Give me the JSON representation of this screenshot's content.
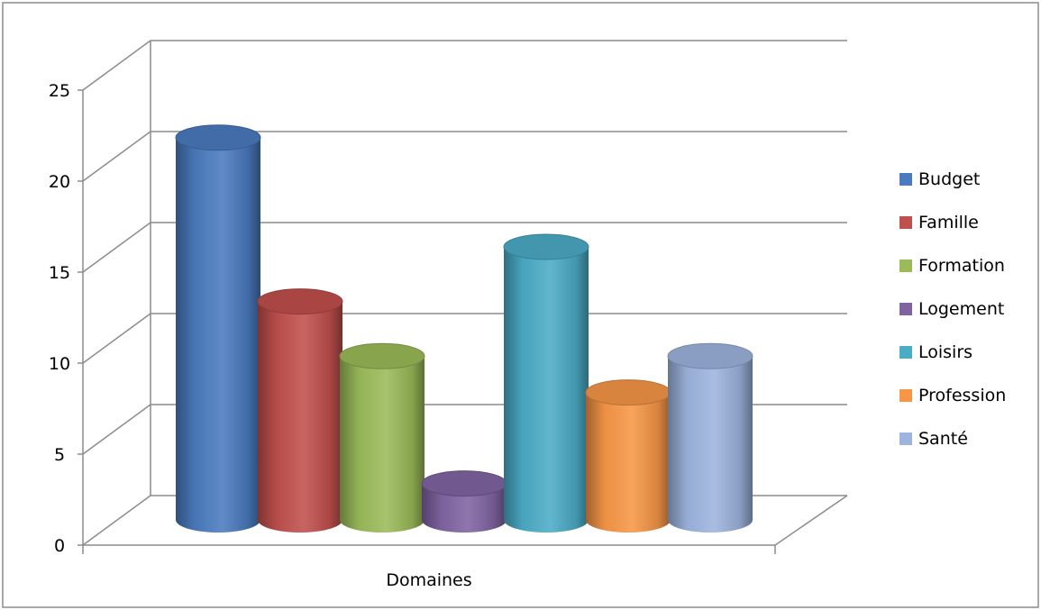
{
  "chart_data": {
    "type": "bar",
    "title": "",
    "xlabel": "Domaines",
    "ylabel": "",
    "ylim": [
      0,
      25
    ],
    "yticks": [
      0,
      5,
      10,
      15,
      20,
      25
    ],
    "grid": true,
    "legend_position": "right",
    "categories": [
      "Domaines"
    ],
    "series": [
      {
        "name": "Budget",
        "values": [
          21
        ],
        "color": "#4a7bbf"
      },
      {
        "name": "Famille",
        "values": [
          12
        ],
        "color": "#c0504d"
      },
      {
        "name": "Formation",
        "values": [
          9
        ],
        "color": "#9bbb59"
      },
      {
        "name": "Logement",
        "values": [
          2
        ],
        "color": "#8064a2"
      },
      {
        "name": "Loisirs",
        "values": [
          15
        ],
        "color": "#4bacc6"
      },
      {
        "name": "Profession",
        "values": [
          7
        ],
        "color": "#f79646"
      },
      {
        "name": "Santé",
        "values": [
          9
        ],
        "color": "#9db4de"
      }
    ]
  }
}
